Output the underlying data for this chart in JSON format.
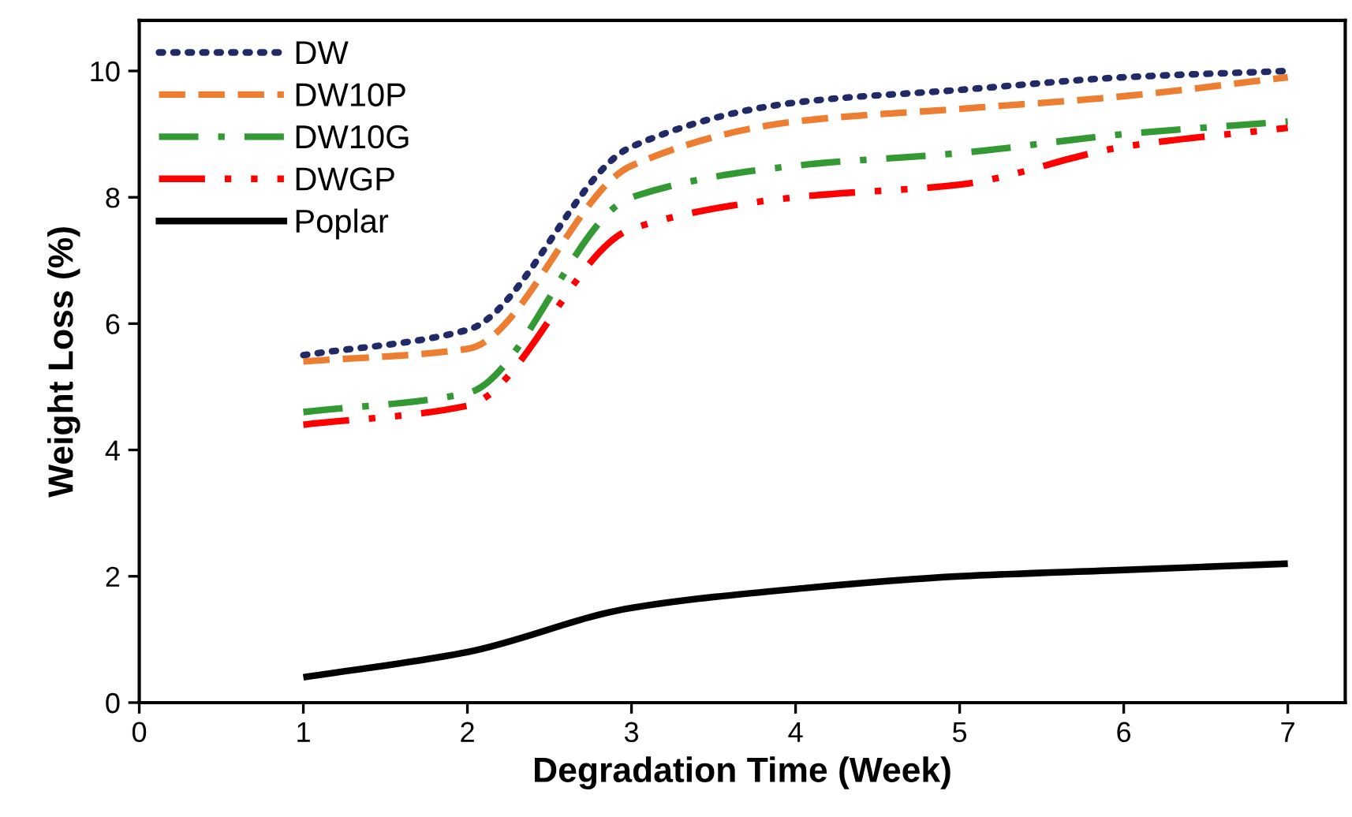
{
  "chart_data": {
    "type": "line",
    "xlabel": "Degradation Time (Week)",
    "ylabel": "Weight Loss (%)",
    "x": [
      1,
      2,
      3,
      4,
      5,
      6,
      7
    ],
    "xlim": [
      0,
      7.35
    ],
    "xticks": [
      0,
      1,
      2,
      3,
      4,
      5,
      6,
      7
    ],
    "ylim": [
      0,
      10.8
    ],
    "yticks": [
      0,
      2,
      4,
      6,
      8,
      10
    ],
    "grid": false,
    "legend": "top left",
    "series": [
      {
        "name": "DW",
        "color": "#1f2a66",
        "line_style": "dotted",
        "values": [
          5.5,
          5.9,
          8.8,
          9.5,
          9.7,
          9.9,
          10.0
        ]
      },
      {
        "name": "DW10P",
        "color": "#ed7d31",
        "line_style": "dashed",
        "values": [
          5.4,
          5.6,
          8.5,
          9.2,
          9.4,
          9.6,
          9.9
        ]
      },
      {
        "name": "DW10G",
        "color": "#339933",
        "line_style": "dashdot",
        "values": [
          4.6,
          4.9,
          8.0,
          8.5,
          8.7,
          9.0,
          9.2
        ]
      },
      {
        "name": "DWGP",
        "color": "#ff0000",
        "line_style": "dashdotdot",
        "values": [
          4.4,
          4.7,
          7.5,
          8.0,
          8.2,
          8.8,
          9.1
        ]
      },
      {
        "name": "Poplar",
        "color": "#000000",
        "line_style": "solid",
        "values": [
          0.4,
          0.8,
          1.5,
          1.8,
          2.0,
          2.1,
          2.2
        ]
      }
    ]
  }
}
